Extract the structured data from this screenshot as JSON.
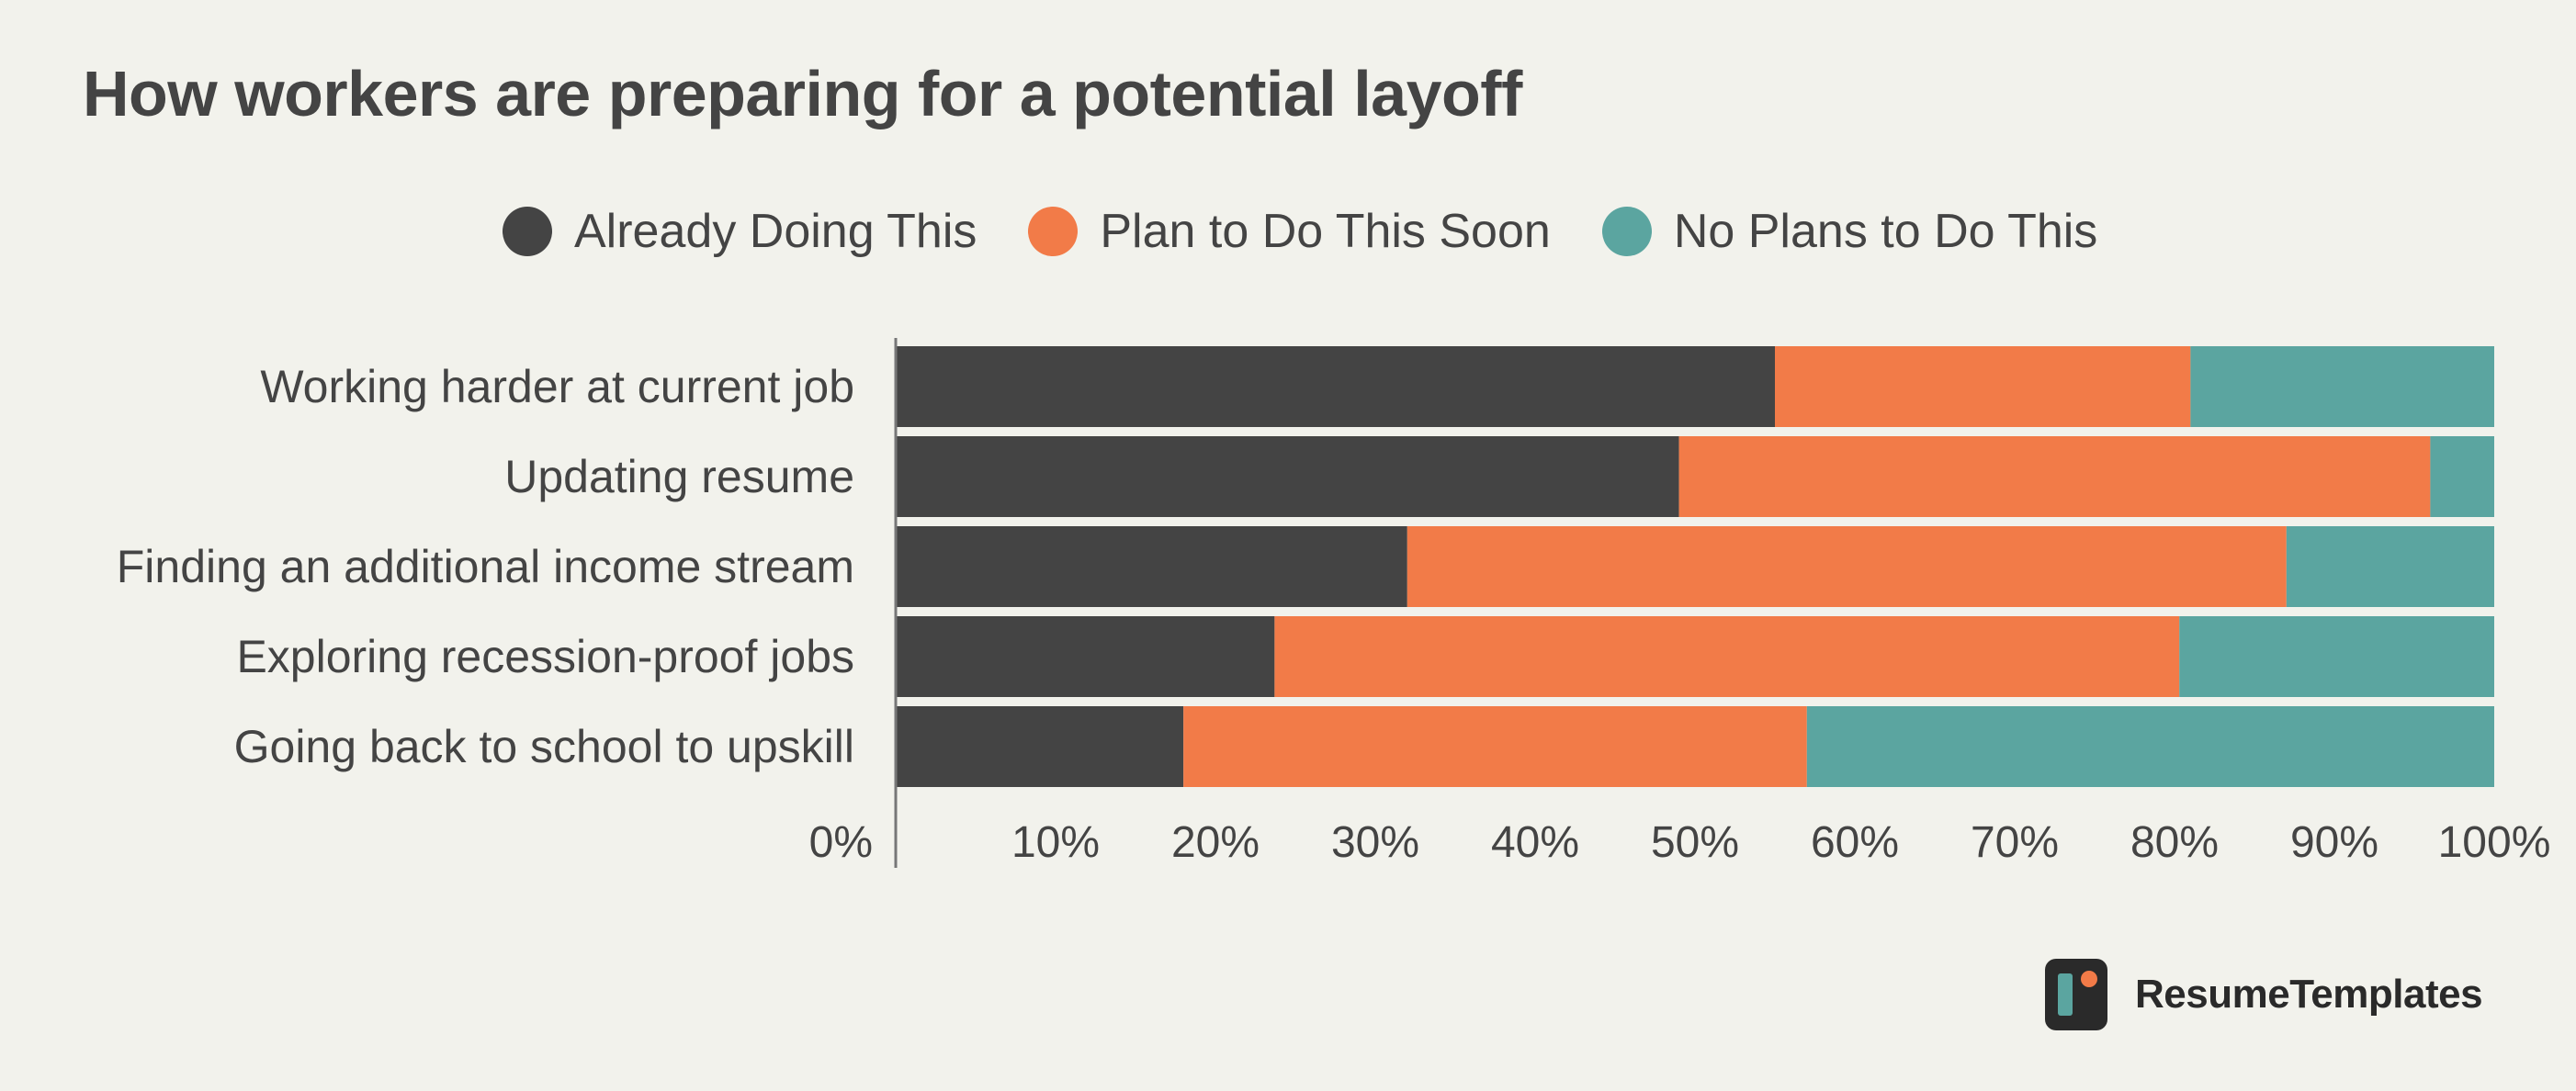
{
  "chart_data": {
    "type": "bar",
    "orientation": "horizontal",
    "stacked": true,
    "title": "How workers are preparing for a potential layoff",
    "categories": [
      "Working harder at current job",
      "Updating resume",
      "Finding an additional income stream",
      "Exploring recession-proof jobs",
      "Going back to school to upskill"
    ],
    "series": [
      {
        "name": "Already Doing This",
        "color": "#444444",
        "values": [
          55,
          49,
          32,
          23.7,
          18
        ]
      },
      {
        "name": "Plan to Do This Soon",
        "color": "#f27b48",
        "values": [
          26,
          47,
          55,
          56.6,
          39
        ]
      },
      {
        "name": "No Plans to Do This",
        "color": "#5ba5a0",
        "values": [
          19,
          4,
          13,
          19.7,
          43
        ]
      }
    ],
    "xlim": [
      0,
      100
    ],
    "xticks": [
      "0%",
      "10%",
      "20%",
      "30%",
      "40%",
      "50%",
      "60%",
      "70%",
      "80%",
      "90%",
      "100%"
    ],
    "legend_position": "top",
    "grid": false
  },
  "brand": {
    "logo_text": "ResumeTemplates",
    "logo_colors": {
      "dark": "#2a2a2a",
      "teal": "#5ba5a0",
      "orange": "#f27b48"
    }
  }
}
